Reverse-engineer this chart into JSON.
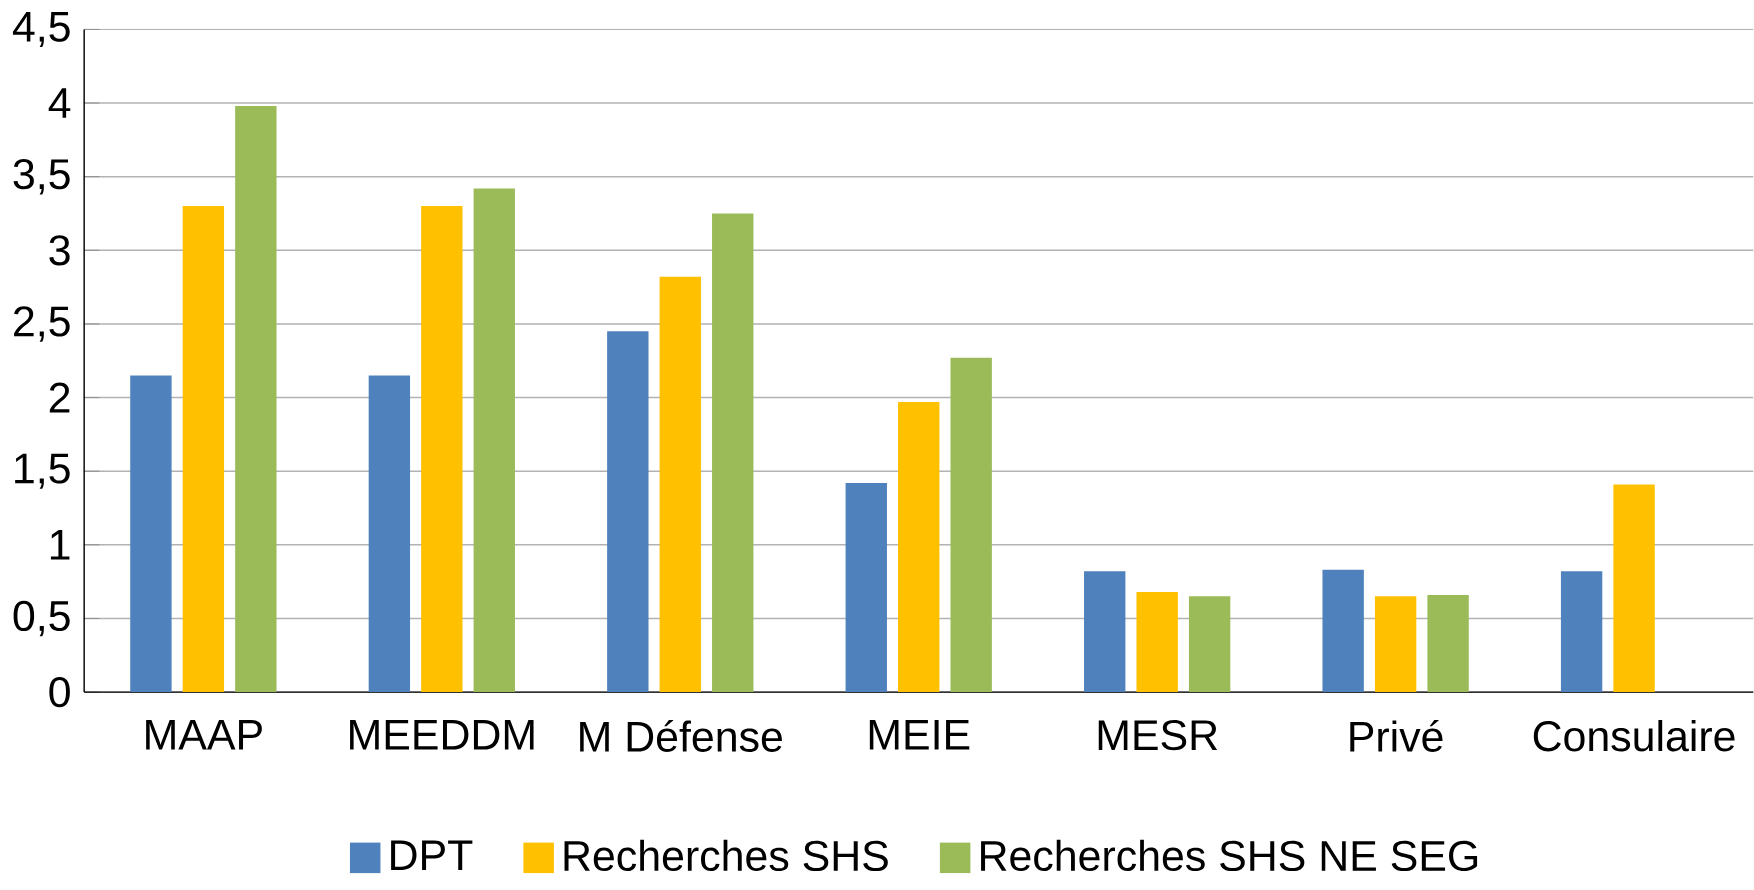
{
  "chart_data": {
    "type": "bar",
    "categories": [
      "MAAP",
      "MEEDDM",
      "M Défense",
      "MEIE",
      "MESR",
      "Privé",
      "Consulaire"
    ],
    "series": [
      {
        "name": "DPT",
        "color": "#4f81bd",
        "values": [
          2.15,
          2.15,
          2.45,
          1.42,
          0.82,
          0.83,
          0.82
        ]
      },
      {
        "name": "Recherches SHS",
        "color": "#ffc000",
        "values": [
          3.3,
          3.3,
          2.82,
          1.97,
          0.68,
          0.65,
          1.41
        ]
      },
      {
        "name": "Recherches SHS NE SEG",
        "color": "#9bbb59",
        "values": [
          3.98,
          3.42,
          3.25,
          2.27,
          0.65,
          0.66,
          null
        ]
      }
    ],
    "ylim": [
      0,
      4.5
    ],
    "yticks": [
      {
        "value": 0,
        "label": "0"
      },
      {
        "value": 0.5,
        "label": "0,5"
      },
      {
        "value": 1,
        "label": "1"
      },
      {
        "value": 1.5,
        "label": "1,5"
      },
      {
        "value": 2,
        "label": "2"
      },
      {
        "value": 2.5,
        "label": "2,5"
      },
      {
        "value": 3,
        "label": "3"
      },
      {
        "value": 3.5,
        "label": "3,5"
      },
      {
        "value": 4,
        "label": "4"
      },
      {
        "value": 4.5,
        "label": "4,5"
      }
    ],
    "grid": "y",
    "legend": "bottom"
  }
}
